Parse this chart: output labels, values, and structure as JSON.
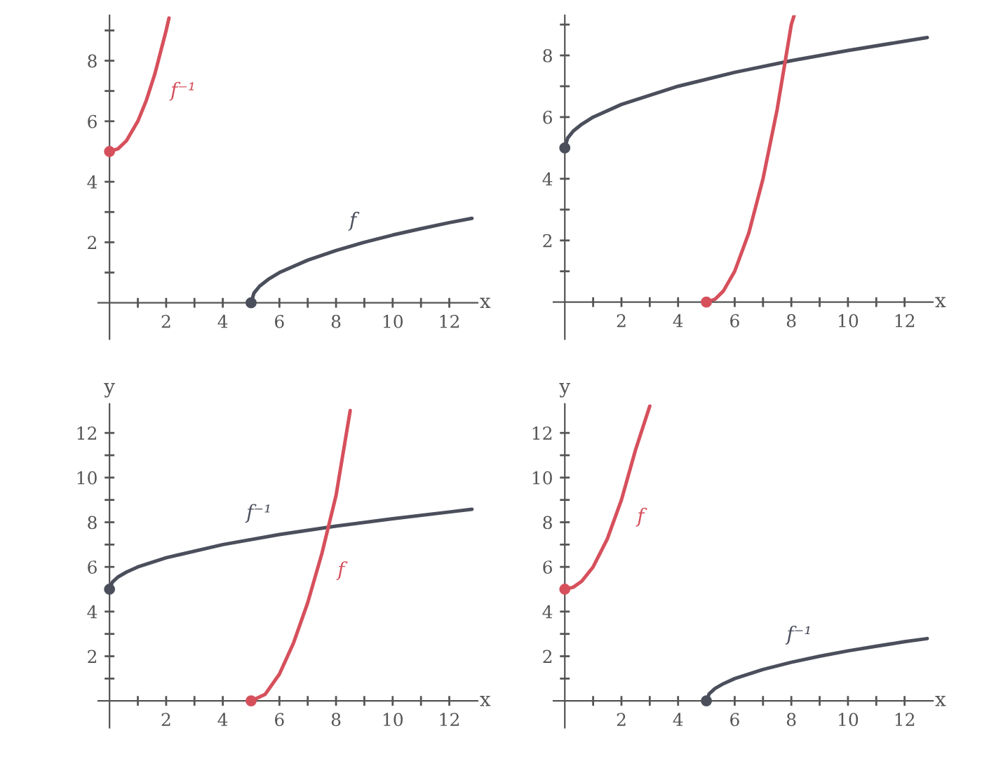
{
  "chart_data": [
    {
      "type": "line",
      "xlabel": "x",
      "xlim": [
        -0.4,
        13
      ],
      "ylim": [
        -1.2,
        9.5
      ],
      "xticks": [
        {
          "value": 1,
          "label": null
        },
        2,
        {
          "value": 3,
          "label": null
        },
        4,
        {
          "value": 5,
          "label": null
        },
        6,
        {
          "value": 7,
          "label": null
        },
        8,
        {
          "value": 9,
          "label": null
        },
        10,
        {
          "value": 11,
          "label": null
        },
        12
      ],
      "yticks": [
        {
          "value": 1,
          "label": null
        },
        2,
        {
          "value": 3,
          "label": null
        },
        4,
        {
          "value": 5,
          "label": null
        },
        6,
        {
          "value": 7,
          "label": null
        },
        8,
        {
          "value": 9,
          "label": null
        }
      ],
      "grid": false,
      "line_style": "solid",
      "series": [
        {
          "name": "f",
          "color": "#4b4f5c",
          "x": [
            5,
            5.1,
            5.3,
            5.6,
            6,
            7,
            8,
            9,
            10,
            11,
            12,
            12.8
          ],
          "values": [
            0,
            0.32,
            0.55,
            0.77,
            1,
            1.41,
            1.73,
            2,
            2.24,
            2.45,
            2.65,
            2.79
          ]
        },
        {
          "name": "f⁻¹",
          "color": "#d6505c",
          "x": [
            0,
            0.3,
            0.6,
            1,
            1.3,
            1.6,
            2,
            2.1
          ],
          "values": [
            5,
            5.09,
            5.36,
            6,
            6.69,
            7.56,
            9,
            9.41
          ]
        },
        {
          "type": "scatter",
          "marker": "circle",
          "color": "#4b4f5c",
          "x": [
            5
          ],
          "values": [
            0
          ]
        },
        {
          "type": "scatter",
          "marker": "circle",
          "color": "#d6505c",
          "x": [
            0
          ],
          "values": [
            5
          ]
        }
      ]
    },
    {
      "type": "line",
      "xlabel": "x",
      "xlim": [
        -0.4,
        13
      ],
      "ylim": [
        -1.2,
        9.3
      ],
      "xticks": [
        {
          "value": 1,
          "label": null
        },
        2,
        {
          "value": 3,
          "label": null
        },
        4,
        {
          "value": 5,
          "label": null
        },
        6,
        {
          "value": 7,
          "label": null
        },
        8,
        {
          "value": 9,
          "label": null
        },
        10,
        {
          "value": 11,
          "label": null
        },
        12
      ],
      "yticks": [
        {
          "value": 1,
          "label": null
        },
        2,
        {
          "value": 3,
          "label": null
        },
        4,
        {
          "value": 5,
          "label": null
        },
        6,
        {
          "value": 7,
          "label": null
        },
        8,
        {
          "value": 9,
          "label": null
        }
      ],
      "grid": false,
      "line_style": "solid",
      "series": [
        {
          "color": "#4b4f5c",
          "x": [
            0,
            0.1,
            0.3,
            0.6,
            1,
            2,
            4,
            6,
            8,
            10,
            12,
            12.8
          ],
          "values": [
            5,
            5.32,
            5.55,
            5.77,
            6,
            6.41,
            7,
            7.45,
            7.83,
            8.16,
            8.46,
            8.58
          ]
        },
        {
          "color": "#d6505c",
          "x": [
            5,
            5.3,
            5.6,
            6,
            6.5,
            7,
            7.5,
            8,
            8.1
          ],
          "values": [
            0,
            0.09,
            0.36,
            1,
            2.25,
            4,
            6.25,
            9,
            9.3
          ]
        },
        {
          "type": "scatter",
          "marker": "circle",
          "color": "#4b4f5c",
          "x": [
            0
          ],
          "values": [
            5
          ]
        },
        {
          "type": "scatter",
          "marker": "circle",
          "color": "#d6505c",
          "x": [
            5
          ],
          "values": [
            0
          ]
        }
      ]
    },
    {
      "type": "line",
      "xlabel": "x",
      "ylabel": "y",
      "xlim": [
        -0.4,
        13
      ],
      "ylim": [
        -1.2,
        13.3
      ],
      "xticks": [
        {
          "value": 1,
          "label": null
        },
        2,
        {
          "value": 3,
          "label": null
        },
        4,
        {
          "value": 5,
          "label": null
        },
        6,
        {
          "value": 7,
          "label": null
        },
        8,
        {
          "value": 9,
          "label": null
        },
        10,
        {
          "value": 11,
          "label": null
        },
        12
      ],
      "yticks": [
        {
          "value": 1,
          "label": null
        },
        2,
        {
          "value": 3,
          "label": null
        },
        4,
        {
          "value": 5,
          "label": null
        },
        6,
        {
          "value": 7,
          "label": null
        },
        8,
        {
          "value": 9,
          "label": null
        },
        10,
        {
          "value": 11,
          "label": null
        },
        12
      ],
      "grid": false,
      "line_style": "solid",
      "series": [
        {
          "name": "f⁻¹",
          "color": "#4b4f5c",
          "x": [
            0,
            0.1,
            0.3,
            0.6,
            1,
            2,
            4,
            6,
            8,
            10,
            12,
            12.8
          ],
          "values": [
            5,
            5.32,
            5.55,
            5.77,
            6,
            6.41,
            7,
            7.45,
            7.83,
            8.16,
            8.46,
            8.58
          ]
        },
        {
          "name": "f",
          "color": "#d6505c",
          "x": [
            5,
            5.5,
            6,
            6.5,
            7,
            7.5,
            8,
            8.5
          ],
          "values": [
            0,
            0.3,
            1.2,
            2.6,
            4.4,
            6.6,
            9.2,
            13
          ]
        },
        {
          "type": "scatter",
          "marker": "circle",
          "color": "#4b4f5c",
          "x": [
            0
          ],
          "values": [
            5
          ]
        },
        {
          "type": "scatter",
          "marker": "circle",
          "color": "#d6505c",
          "x": [
            5
          ],
          "values": [
            0
          ]
        }
      ]
    },
    {
      "type": "line",
      "xlabel": "x",
      "ylabel": "y",
      "xlim": [
        -0.4,
        13
      ],
      "ylim": [
        -1.2,
        13.3
      ],
      "xticks": [
        {
          "value": 1,
          "label": null
        },
        2,
        {
          "value": 3,
          "label": null
        },
        4,
        {
          "value": 5,
          "label": null
        },
        6,
        {
          "value": 7,
          "label": null
        },
        8,
        {
          "value": 9,
          "label": null
        },
        10,
        {
          "value": 11,
          "label": null
        },
        12
      ],
      "yticks": [
        {
          "value": 1,
          "label": null
        },
        2,
        {
          "value": 3,
          "label": null
        },
        4,
        {
          "value": 5,
          "label": null
        },
        6,
        {
          "value": 7,
          "label": null
        },
        8,
        {
          "value": 9,
          "label": null
        },
        10,
        {
          "value": 11,
          "label": null
        },
        12
      ],
      "grid": false,
      "line_style": "solid",
      "series": [
        {
          "name": "f⁻¹",
          "color": "#4b4f5c",
          "x": [
            5,
            5.1,
            5.3,
            5.6,
            6,
            7,
            8,
            9,
            10,
            11,
            12,
            12.8
          ],
          "values": [
            0,
            0.32,
            0.55,
            0.77,
            1,
            1.41,
            1.73,
            2,
            2.24,
            2.45,
            2.65,
            2.79
          ]
        },
        {
          "name": "f",
          "color": "#d6505c",
          "x": [
            0,
            0.3,
            0.6,
            1,
            1.5,
            2,
            2.5,
            3
          ],
          "values": [
            5,
            5.09,
            5.36,
            6,
            7.25,
            9,
            11.25,
            13.2
          ]
        },
        {
          "type": "scatter",
          "marker": "circle",
          "color": "#4b4f5c",
          "x": [
            5
          ],
          "values": [
            0
          ]
        },
        {
          "type": "scatter",
          "marker": "circle",
          "color": "#d6505c",
          "x": [
            0
          ],
          "values": [
            5
          ]
        }
      ]
    }
  ]
}
